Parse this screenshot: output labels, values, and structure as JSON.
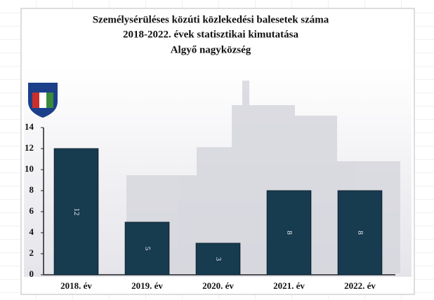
{
  "chart_data": {
    "type": "bar",
    "title": [
      "Személysérüléses közúti közlekedési balesetek száma",
      "2018-2022. évek statisztikai kimutatása",
      "Algyő nagyközség"
    ],
    "categories": [
      "2018. év",
      "2019. év",
      "2020. év",
      "2021. év",
      "2022. év"
    ],
    "values": [
      12,
      5,
      3,
      8,
      8
    ],
    "color": "#173b4f",
    "ylim": [
      0,
      14
    ],
    "yticks": [
      0,
      2,
      4,
      6,
      8,
      10,
      12,
      14
    ],
    "data_labels": true
  }
}
